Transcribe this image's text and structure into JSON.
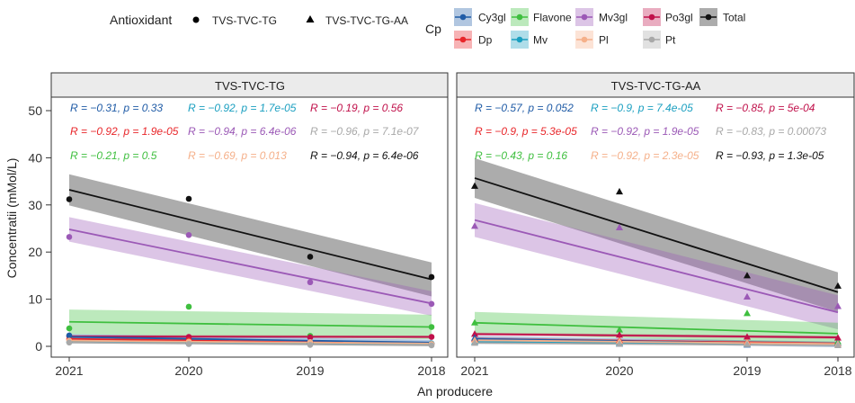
{
  "chart_data": {
    "type": "scatter",
    "title": "",
    "xlabel": "An producere",
    "ylabel": "Concentratii (mMol/L)",
    "ylim": [
      0,
      52
    ],
    "yticks": [
      0,
      10,
      20,
      30,
      40,
      50
    ],
    "x_categories": [
      "2021",
      "2020",
      "2019",
      "2018"
    ],
    "facets": [
      "TVS-TVC-TG",
      "TVS-TVC-TG-AA"
    ],
    "legend": {
      "antioxidant_title": "Antioxidant",
      "antioxidant_items": [
        {
          "label": "TVS-TVC-TG",
          "shape": "circle"
        },
        {
          "label": "TVS-TVC-TG-AA",
          "shape": "triangle"
        }
      ],
      "cp_title": "Cp",
      "cp_items": [
        {
          "label": "Cy3gl",
          "color": "#1f5ba6"
        },
        {
          "label": "Dp",
          "color": "#e8262a"
        },
        {
          "label": "Flavone",
          "color": "#3fbf3f"
        },
        {
          "label": "Mv",
          "color": "#1a9fc0"
        },
        {
          "label": "Mv3gl",
          "color": "#9b59b6"
        },
        {
          "label": "Pl",
          "color": "#f5b08a"
        },
        {
          "label": "Po3gl",
          "color": "#c0104a"
        },
        {
          "label": "Pt",
          "color": "#a8a8a8"
        },
        {
          "label": "Total",
          "color": "#111111"
        }
      ],
      "placement": "top"
    },
    "series": [
      {
        "name": "Total",
        "color": "#111111",
        "values": {
          "TVS-TVC-TG": [
            31.2,
            31.3,
            19.0,
            14.7
          ],
          "TVS-TVC-TG-AA": [
            34.0,
            32.8,
            15.0,
            12.8
          ]
        },
        "fit": {
          "TVS-TVC-TG": [
            33.2,
            14.2
          ],
          "TVS-TVC-TG-AA": [
            35.7,
            11.5
          ]
        },
        "band": {
          "TVS-TVC-TG": [
            3.3,
            3.6
          ],
          "TVS-TVC-TG-AA": [
            4.2,
            4.2
          ]
        }
      },
      {
        "name": "Mv3gl",
        "color": "#9b59b6",
        "values": {
          "TVS-TVC-TG": [
            23.2,
            23.6,
            13.6,
            9.0
          ],
          "TVS-TVC-TG-AA": [
            25.5,
            25.2,
            10.5,
            8.5
          ]
        },
        "fit": {
          "TVS-TVC-TG": [
            24.8,
            9.1
          ],
          "TVS-TVC-TG-AA": [
            26.8,
            7.2
          ]
        },
        "band": {
          "TVS-TVC-TG": [
            2.6,
            2.6
          ],
          "TVS-TVC-TG-AA": [
            3.6,
            3.6
          ]
        }
      },
      {
        "name": "Flavone",
        "color": "#3fbf3f",
        "values": {
          "TVS-TVC-TG": [
            3.8,
            8.4,
            2.2,
            4.1
          ],
          "TVS-TVC-TG-AA": [
            5.0,
            3.5,
            7.0,
            1.0
          ]
        },
        "fit": {
          "TVS-TVC-TG": [
            5.2,
            4.1
          ],
          "TVS-TVC-TG-AA": [
            5.0,
            2.7
          ]
        },
        "band": {
          "TVS-TVC-TG": [
            2.6,
            2.6
          ],
          "TVS-TVC-TG-AA": [
            2.3,
            2.3
          ]
        }
      },
      {
        "name": "Po3gl",
        "color": "#c0104a",
        "values": {
          "TVS-TVC-TG": [
            2.2,
            2.0,
            1.9,
            2.0
          ],
          "TVS-TVC-TG-AA": [
            2.6,
            2.4,
            2.0,
            1.8
          ]
        },
        "fit": {
          "TVS-TVC-TG": [
            2.1,
            2.0
          ],
          "TVS-TVC-TG-AA": [
            2.6,
            1.9
          ]
        },
        "band": {
          "TVS-TVC-TG": [
            0.3,
            0.3
          ],
          "TVS-TVC-TG-AA": [
            0.3,
            0.3
          ]
        }
      },
      {
        "name": "Dp",
        "color": "#e8262a",
        "values": {
          "TVS-TVC-TG": [
            1.5,
            1.3,
            0.8,
            0.5
          ],
          "TVS-TVC-TG-AA": [
            1.6,
            1.3,
            0.9,
            0.6
          ]
        },
        "fit": {
          "TVS-TVC-TG": [
            1.6,
            0.5
          ],
          "TVS-TVC-TG-AA": [
            1.6,
            0.6
          ]
        },
        "band": {
          "TVS-TVC-TG": [
            0.3,
            0.3
          ],
          "TVS-TVC-TG-AA": [
            0.3,
            0.3
          ]
        }
      },
      {
        "name": "Cy3gl",
        "color": "#1f5ba6",
        "values": {
          "TVS-TVC-TG": [
            2.3,
            0.5,
            0.9,
            0.6
          ],
          "TVS-TVC-TG-AA": [
            1.8,
            0.5,
            0.3,
            0.6
          ]
        },
        "fit": {
          "TVS-TVC-TG": [
            2.0,
            0.8
          ],
          "TVS-TVC-TG-AA": [
            1.6,
            0.4
          ]
        },
        "band": {
          "TVS-TVC-TG": [
            0.6,
            0.6
          ],
          "TVS-TVC-TG-AA": [
            0.6,
            0.6
          ]
        }
      },
      {
        "name": "Mv",
        "color": "#1a9fc0",
        "values": {
          "TVS-TVC-TG": [
            0.9,
            0.7,
            0.6,
            0.6
          ],
          "TVS-TVC-TG-AA": [
            0.9,
            0.7,
            0.5,
            0.6
          ]
        },
        "fit": {
          "TVS-TVC-TG": [
            0.9,
            0.5
          ],
          "TVS-TVC-TG-AA": [
            0.9,
            0.5
          ]
        },
        "band": {
          "TVS-TVC-TG": [
            0.2,
            0.2
          ],
          "TVS-TVC-TG-AA": [
            0.2,
            0.2
          ]
        }
      },
      {
        "name": "Pl",
        "color": "#f5b08a",
        "values": {
          "TVS-TVC-TG": [
            1.2,
            1.0,
            0.9,
            0.5
          ],
          "TVS-TVC-TG-AA": [
            1.3,
            1.1,
            0.8,
            0.5
          ]
        },
        "fit": {
          "TVS-TVC-TG": [
            1.2,
            0.6
          ],
          "TVS-TVC-TG-AA": [
            1.3,
            0.5
          ]
        },
        "band": {
          "TVS-TVC-TG": [
            0.2,
            0.2
          ],
          "TVS-TVC-TG-AA": [
            0.2,
            0.2
          ]
        }
      },
      {
        "name": "Pt",
        "color": "#a8a8a8",
        "values": {
          "TVS-TVC-TG": [
            0.8,
            0.5,
            0.3,
            0.2
          ],
          "TVS-TVC-TG-AA": [
            0.7,
            0.5,
            0.4,
            0.2
          ]
        },
        "fit": {
          "TVS-TVC-TG": [
            0.8,
            0.2
          ],
          "TVS-TVC-TG-AA": [
            0.7,
            0.2
          ]
        },
        "band": {
          "TVS-TVC-TG": [
            0.1,
            0.1
          ],
          "TVS-TVC-TG-AA": [
            0.1,
            0.1
          ]
        }
      }
    ],
    "annotations": {
      "TVS-TVC-TG": [
        {
          "text": "R = −0.31, p = 0.33",
          "color": "#1f5ba6"
        },
        {
          "text": "R = −0.92, p = 1.7e-05",
          "color": "#1a9fc0"
        },
        {
          "text": "R = −0.19, p = 0.56",
          "color": "#c0104a"
        },
        {
          "text": "R = −0.92, p = 1.9e-05",
          "color": "#e8262a"
        },
        {
          "text": "R = −0.94, p = 6.4e-06",
          "color": "#9b59b6"
        },
        {
          "text": "R = −0.96, p = 7.1e-07",
          "color": "#a8a8a8"
        },
        {
          "text": "R = −0.21, p = 0.5",
          "color": "#3fbf3f"
        },
        {
          "text": "R = −0.69, p = 0.013",
          "color": "#f5b08a"
        },
        {
          "text": "R = −0.94, p = 6.4e-06",
          "color": "#111111"
        }
      ],
      "TVS-TVC-TG-AA": [
        {
          "text": "R = −0.57, p = 0.052",
          "color": "#1f5ba6"
        },
        {
          "text": "R = −0.9, p = 7.4e-05",
          "color": "#1a9fc0"
        },
        {
          "text": "R = −0.85, p = 5e-04",
          "color": "#c0104a"
        },
        {
          "text": "R = −0.9, p = 5.3e-05",
          "color": "#e8262a"
        },
        {
          "text": "R = −0.92, p = 1.9e-05",
          "color": "#9b59b6"
        },
        {
          "text": "R = −0.83, p = 0.00073",
          "color": "#a8a8a8"
        },
        {
          "text": "R = −0.43, p = 0.16",
          "color": "#3fbf3f"
        },
        {
          "text": "R = −0.92, p = 2.3e-05",
          "color": "#f5b08a"
        },
        {
          "text": "R = −0.93, p = 1.3e-05",
          "color": "#111111"
        }
      ]
    }
  }
}
